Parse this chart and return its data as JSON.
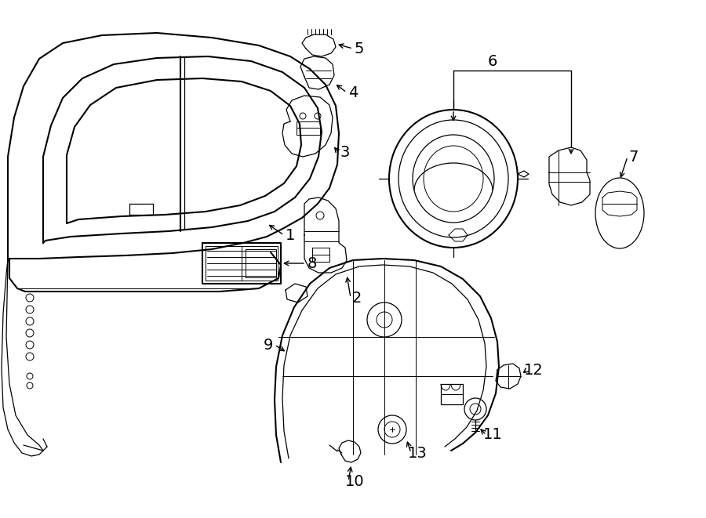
{
  "bg_color": "#ffffff",
  "line_color": "#000000",
  "figsize": [
    9.0,
    6.61
  ],
  "dpi": 100,
  "xlim": [
    0,
    900
  ],
  "ylim": [
    0,
    661
  ],
  "callout_fontsize": 14,
  "leader_lw": 1.0,
  "body_lw": 1.5,
  "detail_lw": 0.9,
  "thin_lw": 0.7
}
